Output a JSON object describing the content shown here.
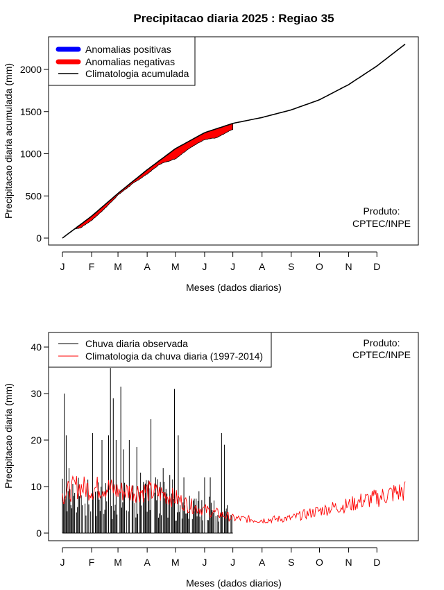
{
  "title": "Precipitacao diaria 2025 : Regiao 35",
  "months": [
    "J",
    "F",
    "M",
    "A",
    "M",
    "J",
    "J",
    "A",
    "S",
    "O",
    "N",
    "D"
  ],
  "product_line1": "Produto:",
  "product_line2": "CPTEC/INPE",
  "colors": {
    "positive": "#0000ff",
    "negative": "#ff0000",
    "climatology": "#000000",
    "observed": "#000000",
    "daily_clim": "#ff0000"
  },
  "chart_data": [
    {
      "type": "area",
      "xlabel": "Meses (dados diarios)",
      "ylabel": "Precipitacao diaria acumulada (mm)",
      "ylim": [
        0,
        2300
      ],
      "yticks": [
        0,
        500,
        1000,
        1500,
        2000
      ],
      "xlim": [
        1,
        365
      ],
      "legend_position": "top-left",
      "legend": [
        "Anomalias positivas",
        "Anomalias negativas",
        "Climatologia acumulada"
      ],
      "climatology_cumulative": {
        "day": [
          1,
          32,
          60,
          91,
          121,
          152,
          182,
          213,
          244,
          274,
          305,
          335,
          365
        ],
        "value": [
          0,
          260,
          530,
          810,
          1060,
          1250,
          1360,
          1430,
          1520,
          1640,
          1820,
          2040,
          2300
        ]
      },
      "observed_cumulative": {
        "day": [
          1,
          10,
          20,
          32,
          45,
          60,
          75,
          91,
          105,
          121,
          135,
          152,
          165,
          182
        ],
        "value": [
          0,
          100,
          120,
          210,
          340,
          510,
          640,
          760,
          880,
          940,
          1060,
          1170,
          1190,
          1290
        ]
      }
    },
    {
      "type": "line",
      "xlabel": "Meses (dados diarios)",
      "ylabel": "Precipitacao diaria (mm)",
      "ylim": [
        0,
        40
      ],
      "yticks": [
        0,
        10,
        20,
        30,
        40
      ],
      "xlim": [
        1,
        365
      ],
      "legend_position": "top-left",
      "legend": [
        "Chuva diaria observada",
        "Climatologia da chuva diaria (1997-2014)"
      ],
      "observed_peaks": {
        "day": [
          3,
          5,
          8,
          13,
          22,
          33,
          38,
          43,
          50,
          52,
          55,
          58,
          63,
          66,
          72,
          80,
          84,
          87,
          95,
          100,
          105,
          108,
          115,
          120,
          124,
          126,
          130,
          136,
          140,
          146,
          152,
          158,
          162,
          170,
          173,
          176
        ],
        "value": [
          30,
          21,
          14,
          8,
          6,
          21.5,
          9,
          20,
          21,
          35.5,
          29,
          20,
          31.5,
          18,
          20,
          18.5,
          13,
          11,
          24.5,
          12,
          11,
          14,
          12.5,
          31,
          21,
          6,
          12,
          8,
          7,
          9,
          12,
          12,
          7,
          21.5,
          19,
          6
        ]
      },
      "climatology_daily": {
        "day": [
          1,
          15,
          32,
          45,
          60,
          75,
          91,
          105,
          121,
          135,
          152,
          166,
          182,
          196,
          213,
          228,
          244,
          258,
          274,
          289,
          305,
          320,
          335,
          350,
          365
        ],
        "value": [
          8,
          10,
          9.5,
          10,
          9,
          9,
          9,
          8.5,
          7.5,
          6,
          5,
          4.2,
          3.2,
          3.0,
          2.8,
          3.0,
          3.2,
          4.0,
          4.8,
          5.5,
          6.0,
          7.0,
          7.5,
          8.5,
          9.0
        ]
      }
    }
  ]
}
